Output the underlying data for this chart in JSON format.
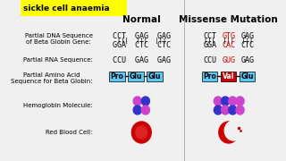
{
  "bg_color": "#f0f0f0",
  "title_bg": "#ffff00",
  "title_text": "sickle cell anaemia",
  "title_color": "#000000",
  "normal_header": "Normal",
  "missense_header": "Missense Mutation",
  "labels": [
    "Partial DNA Sequence\nof Beta Globin Gene:",
    "Partial RNA Sequence:",
    "Partial Amino Acid\nSequence for Beta Globin:",
    "Hemoglobin Molecule:",
    "Red Blood Cell:"
  ],
  "normal_dna_top": "CCT  GAG  GAG",
  "normal_dna_bottom": "GGA  CTC  CTC",
  "normal_rna": "CCU  GAG  GAG",
  "missense_dna_top_parts": [
    "CCT",
    "GTG",
    "GAG"
  ],
  "missense_dna_bottom_parts": [
    "GGA",
    "CAC",
    "CTC"
  ],
  "missense_rna_parts": [
    "CCU",
    "GUG",
    "GAG"
  ],
  "normal_amino": [
    "Pro",
    "Glu",
    "Glu"
  ],
  "missense_amino": [
    "Pro",
    "Val",
    "Glu"
  ],
  "amino_colors_normal": [
    "#5bc8f5",
    "#5bc8f5",
    "#5bc8f5"
  ],
  "amino_colors_missense": [
    "#5bc8f5",
    "#cc0000",
    "#5bc8f5"
  ],
  "mutated_color": "#cc0000",
  "normal_color": "#000000",
  "hemo_purple": "#cc44cc",
  "hemo_blue": "#3333cc",
  "rbc_red": "#cc0000"
}
